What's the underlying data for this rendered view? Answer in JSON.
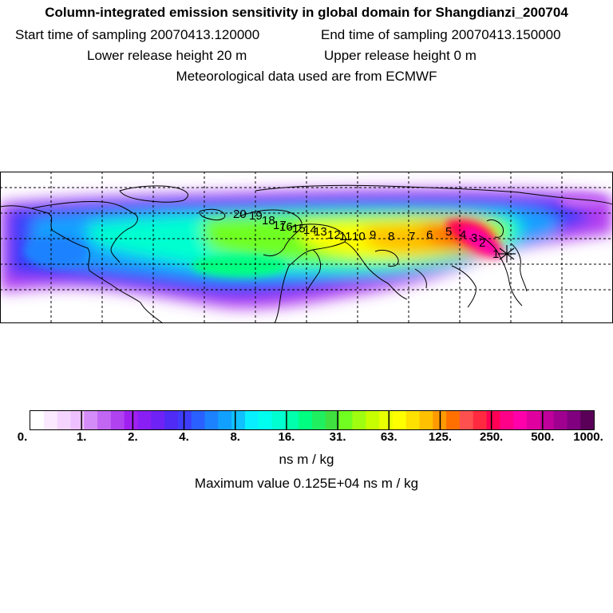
{
  "header": {
    "title": "Column-integrated emission sensitivity in global domain for Shangdianzi_200704",
    "start_time": "Start time of sampling 20070413.120000",
    "end_time": "End time of sampling 20070413.150000",
    "lower_height": "Lower release height   20 m",
    "upper_height": "Upper release height    0 m",
    "met_data": "Meteorological data used are from ECMWF"
  },
  "map": {
    "receptor_marker": "x",
    "trajectory_points": [
      {
        "label": "1"
      },
      {
        "label": "2"
      },
      {
        "label": "3"
      },
      {
        "label": "4"
      },
      {
        "label": "5"
      },
      {
        "label": "6"
      },
      {
        "label": "7"
      },
      {
        "label": "8"
      },
      {
        "label": "9"
      },
      {
        "label": "10"
      },
      {
        "label": "11"
      },
      {
        "label": "12"
      },
      {
        "label": "13"
      },
      {
        "label": "14"
      },
      {
        "label": "15"
      },
      {
        "label": "16"
      },
      {
        "label": "17"
      },
      {
        "label": "18"
      },
      {
        "label": "19"
      },
      {
        "label": "20"
      }
    ]
  },
  "colorbar": {
    "labels": [
      "0.",
      "1.",
      "2.",
      "4.",
      "8.",
      "16.",
      "31.",
      "63.",
      "125.",
      "250.",
      "500.",
      "1000."
    ],
    "colors": [
      "#ffffff",
      "#fbe9ff",
      "#f5d5ff",
      "#efc0ff",
      "#d48cf8",
      "#c266f4",
      "#b042f0",
      "#a020f0",
      "#8a1ff5",
      "#6f22f5",
      "#4f2bf5",
      "#3d3dfa",
      "#2a60ff",
      "#1c82ff",
      "#12a0ff",
      "#10c0ff",
      "#08f0ff",
      "#00ffee",
      "#00ffd0",
      "#00ffaa",
      "#00ff80",
      "#20f060",
      "#40e040",
      "#70ff20",
      "#a0ff10",
      "#c8ff00",
      "#e8ff00",
      "#ffff00",
      "#ffe000",
      "#ffc000",
      "#ff9a00",
      "#ff7000",
      "#ff5050",
      "#ff2a40",
      "#ff0055",
      "#ff0088",
      "#ff00aa",
      "#e000a0",
      "#c0009a",
      "#a00090",
      "#800080",
      "#5a0058"
    ],
    "units": "ns m / kg",
    "max_value": "Maximum value  0.125E+04 ns m / kg"
  }
}
